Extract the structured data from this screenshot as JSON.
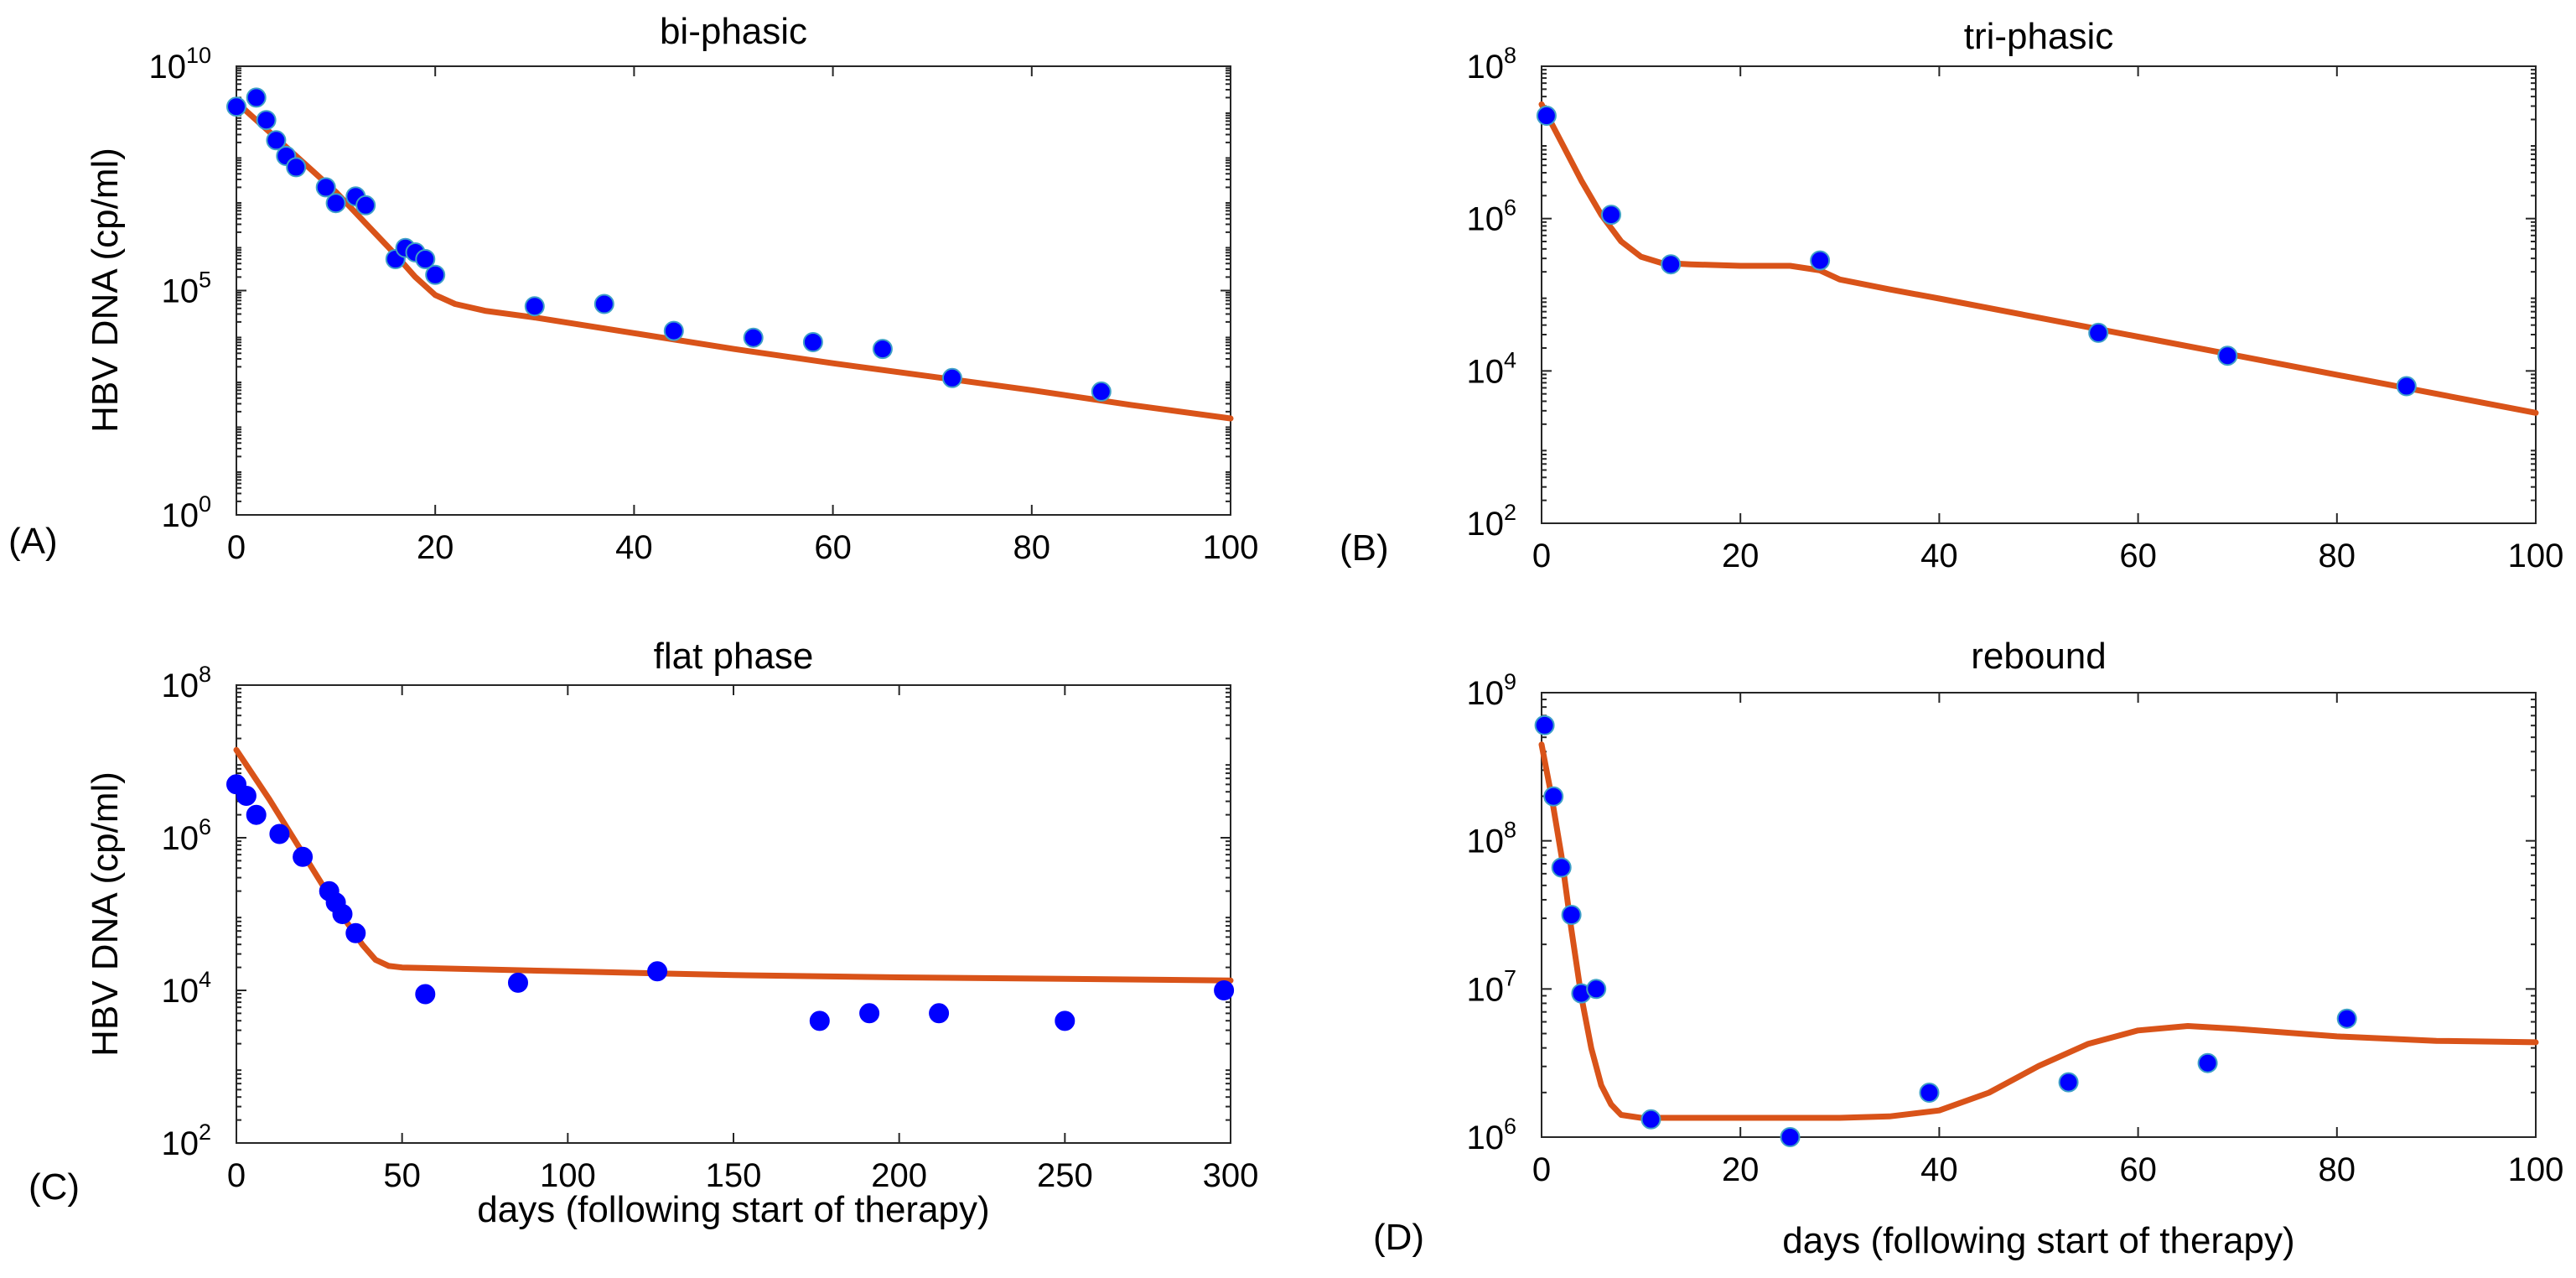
{
  "colors": {
    "fit_line": "#d95319",
    "point_fill": "#0000ff",
    "point_edge_teal": "#3fa0c8",
    "axis": "#262626"
  },
  "ylabel": "HBV DNA (cp/ml)",
  "xlabel": "days (following start of therapy)",
  "chart_data": [
    {
      "type": "scatter",
      "panel_label": "(A)",
      "title": "bi-phasic",
      "yscale": "log",
      "xlim": [
        0,
        100
      ],
      "ylim_log10": [
        0,
        10
      ],
      "xticks": [
        0,
        20,
        40,
        60,
        80,
        100
      ],
      "xtick_labels": [
        "0",
        "20",
        "40",
        "60",
        "80",
        "100"
      ],
      "yticks_log10": [
        0,
        5,
        10
      ],
      "ytick_bases": [
        "10",
        "10",
        "10"
      ],
      "ytick_exponents": [
        "0",
        "5",
        "10"
      ],
      "point_edge": "teal",
      "points_log10": [
        [
          0,
          9.1
        ],
        [
          2,
          9.3
        ],
        [
          3,
          8.8
        ],
        [
          4,
          8.35
        ],
        [
          5,
          8.0
        ],
        [
          6,
          7.75
        ],
        [
          9,
          7.3
        ],
        [
          10,
          6.95
        ],
        [
          12,
          7.1
        ],
        [
          13,
          6.9
        ],
        [
          16,
          5.7
        ],
        [
          17,
          5.95
        ],
        [
          18,
          5.85
        ],
        [
          19,
          5.7
        ],
        [
          20,
          5.35
        ],
        [
          30,
          4.65
        ],
        [
          37,
          4.7
        ],
        [
          44,
          4.1
        ],
        [
          52,
          3.95
        ],
        [
          58,
          3.85
        ],
        [
          65,
          3.7
        ],
        [
          72,
          3.05
        ],
        [
          87,
          2.75
        ]
      ],
      "fit_log10": [
        [
          0,
          9.2
        ],
        [
          3,
          8.6
        ],
        [
          6,
          8.0
        ],
        [
          10,
          7.2
        ],
        [
          13,
          6.5
        ],
        [
          16,
          5.8
        ],
        [
          18,
          5.3
        ],
        [
          20,
          4.9
        ],
        [
          22,
          4.7
        ],
        [
          25,
          4.55
        ],
        [
          30,
          4.4
        ],
        [
          40,
          4.05
        ],
        [
          50,
          3.7
        ],
        [
          60,
          3.38
        ],
        [
          70,
          3.08
        ],
        [
          80,
          2.78
        ],
        [
          90,
          2.45
        ],
        [
          100,
          2.15
        ]
      ]
    },
    {
      "type": "scatter",
      "panel_label": "(B)",
      "title": "tri-phasic",
      "yscale": "log",
      "xlim": [
        0,
        100
      ],
      "ylim_log10": [
        2,
        8
      ],
      "xticks": [
        0,
        20,
        40,
        60,
        80,
        100
      ],
      "xtick_labels": [
        "0",
        "20",
        "40",
        "60",
        "80",
        "100"
      ],
      "yticks_log10": [
        2,
        4,
        6,
        8
      ],
      "ytick_bases": [
        "10",
        "10",
        "10",
        "10"
      ],
      "ytick_exponents": [
        "2",
        "4",
        "6",
        "8"
      ],
      "point_edge": "teal",
      "points_log10": [
        [
          0.5,
          7.35
        ],
        [
          7,
          6.05
        ],
        [
          13,
          5.4
        ],
        [
          28,
          5.45
        ],
        [
          56,
          4.5
        ],
        [
          69,
          4.2
        ],
        [
          87,
          3.8
        ]
      ],
      "fit_log10": [
        [
          0,
          7.5
        ],
        [
          2,
          7.0
        ],
        [
          4,
          6.5
        ],
        [
          6,
          6.05
        ],
        [
          8,
          5.7
        ],
        [
          10,
          5.5
        ],
        [
          12,
          5.42
        ],
        [
          15,
          5.4
        ],
        [
          20,
          5.38
        ],
        [
          25,
          5.38
        ],
        [
          28,
          5.32
        ],
        [
          30,
          5.2
        ],
        [
          35,
          5.07
        ],
        [
          40,
          4.95
        ],
        [
          50,
          4.7
        ],
        [
          60,
          4.45
        ],
        [
          70,
          4.2
        ],
        [
          80,
          3.95
        ],
        [
          90,
          3.7
        ],
        [
          100,
          3.45
        ]
      ]
    },
    {
      "type": "scatter",
      "panel_label": "(C)",
      "title": "flat phase",
      "yscale": "log",
      "xlim": [
        0,
        300
      ],
      "ylim_log10": [
        2,
        8
      ],
      "xticks": [
        0,
        50,
        100,
        150,
        200,
        250,
        300
      ],
      "xtick_labels": [
        "0",
        "50",
        "100",
        "150",
        "200",
        "250",
        "300"
      ],
      "yticks_log10": [
        2,
        4,
        6,
        8
      ],
      "ytick_bases": [
        "10",
        "10",
        "10",
        "10"
      ],
      "ytick_exponents": [
        "2",
        "4",
        "6",
        "8"
      ],
      "point_edge": "blue",
      "points_log10": [
        [
          0,
          6.7
        ],
        [
          3,
          6.55
        ],
        [
          6,
          6.3
        ],
        [
          13,
          6.05
        ],
        [
          20,
          5.75
        ],
        [
          28,
          5.3
        ],
        [
          30,
          5.15
        ],
        [
          32,
          5.0
        ],
        [
          36,
          4.75
        ],
        [
          57,
          3.95
        ],
        [
          85,
          4.1
        ],
        [
          127,
          4.25
        ],
        [
          176,
          3.6
        ],
        [
          191,
          3.7
        ],
        [
          212,
          3.7
        ],
        [
          250,
          3.6
        ],
        [
          298,
          4.0
        ]
      ],
      "fit_log10": [
        [
          0,
          7.15
        ],
        [
          10,
          6.5
        ],
        [
          20,
          5.8
        ],
        [
          30,
          5.1
        ],
        [
          38,
          4.6
        ],
        [
          42,
          4.4
        ],
        [
          46,
          4.32
        ],
        [
          50,
          4.3
        ],
        [
          100,
          4.25
        ],
        [
          150,
          4.2
        ],
        [
          200,
          4.17
        ],
        [
          250,
          4.15
        ],
        [
          300,
          4.13
        ]
      ]
    },
    {
      "type": "scatter",
      "panel_label": "(D)",
      "title": "rebound",
      "yscale": "log",
      "xlim": [
        0,
        100
      ],
      "ylim_log10": [
        6,
        9
      ],
      "xticks": [
        0,
        20,
        40,
        60,
        80,
        100
      ],
      "xtick_labels": [
        "0",
        "20",
        "40",
        "60",
        "80",
        "100"
      ],
      "yticks_log10": [
        6,
        7,
        8,
        9
      ],
      "ytick_bases": [
        "10",
        "10",
        "10",
        "10"
      ],
      "ytick_exponents": [
        "6",
        "7",
        "8",
        "9"
      ],
      "point_edge": "teal",
      "points_log10": [
        [
          0.3,
          8.78
        ],
        [
          1.2,
          8.3
        ],
        [
          2,
          7.82
        ],
        [
          3,
          7.5
        ],
        [
          4,
          6.97
        ],
        [
          5.5,
          7.0
        ],
        [
          11,
          6.12
        ],
        [
          25,
          6.0
        ],
        [
          39,
          6.3
        ],
        [
          53,
          6.37
        ],
        [
          67,
          6.5
        ],
        [
          81,
          6.8
        ]
      ],
      "fit_log10": [
        [
          0,
          8.65
        ],
        [
          1,
          8.3
        ],
        [
          2,
          7.9
        ],
        [
          3,
          7.4
        ],
        [
          4,
          6.95
        ],
        [
          5,
          6.6
        ],
        [
          6,
          6.35
        ],
        [
          7,
          6.22
        ],
        [
          8,
          6.15
        ],
        [
          10,
          6.13
        ],
        [
          20,
          6.13
        ],
        [
          30,
          6.13
        ],
        [
          35,
          6.14
        ],
        [
          40,
          6.18
        ],
        [
          45,
          6.3
        ],
        [
          50,
          6.48
        ],
        [
          55,
          6.63
        ],
        [
          60,
          6.72
        ],
        [
          65,
          6.75
        ],
        [
          70,
          6.73
        ],
        [
          80,
          6.68
        ],
        [
          90,
          6.65
        ],
        [
          100,
          6.64
        ]
      ]
    }
  ]
}
